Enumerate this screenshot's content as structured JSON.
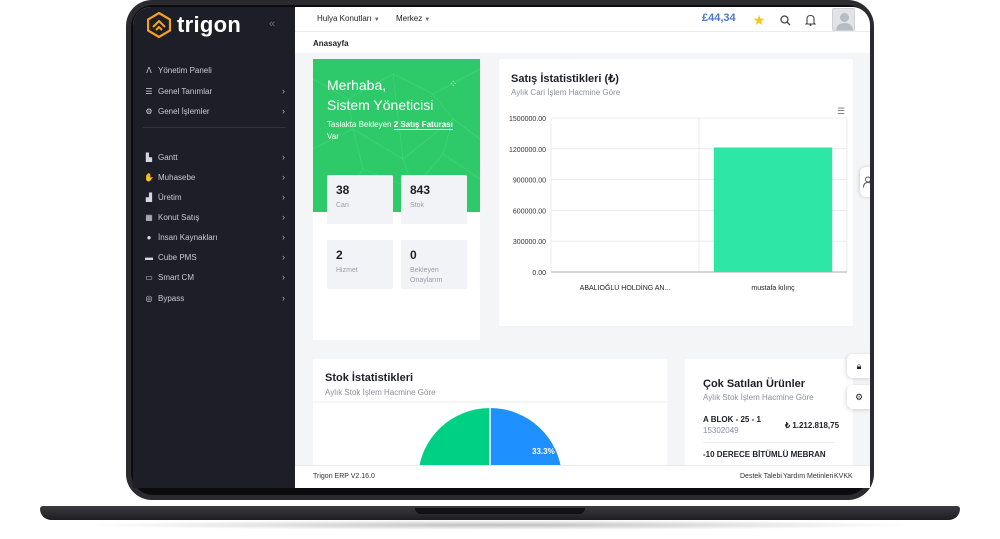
{
  "app": {
    "logo_text": "trigon"
  },
  "sidebar": {
    "items": [
      {
        "label": "Yönetim Paneli",
        "icon": "chart-icon",
        "has_chevron": false
      },
      {
        "label": "Genel Tanımlar",
        "icon": "sliders-icon",
        "has_chevron": true
      },
      {
        "label": "Genel İşlemler",
        "icon": "cogs-icon",
        "has_chevron": true
      },
      {
        "label": "Gantt",
        "icon": "gantt-icon",
        "has_chevron": true
      },
      {
        "label": "Muhasebe",
        "icon": "hand-coins-icon",
        "has_chevron": true
      },
      {
        "label": "Üretim",
        "icon": "factory-icon",
        "has_chevron": true
      },
      {
        "label": "Konut Satış",
        "icon": "building-icon",
        "has_chevron": true
      },
      {
        "label": "İnsan Kaynakları",
        "icon": "user-icon",
        "has_chevron": true
      },
      {
        "label": "Cube PMS",
        "icon": "cube-icon",
        "has_chevron": true
      },
      {
        "label": "Smart CM",
        "icon": "cm-icon",
        "has_chevron": true
      },
      {
        "label": "Bypass",
        "icon": "bypass-icon",
        "has_chevron": true
      }
    ]
  },
  "topbar": {
    "company": "Hulya Konutları",
    "branch": "Merkez",
    "balance": "£44,34"
  },
  "breadcrumb": "Anasayfa",
  "welcome": {
    "greeting_line1": "Merhaba,",
    "greeting_line2": "Sistem Yöneticisi",
    "draft_prefix": "Taslakta Bekleyen ",
    "draft_link": "2 Satış Faturası",
    "draft_suffix": "Var",
    "stats": [
      {
        "value": "38",
        "label": "Cari"
      },
      {
        "value": "843",
        "label": "Stok"
      },
      {
        "value": "2",
        "label": "Hizmet"
      },
      {
        "value": "0",
        "label": "Bekleyen Onaylarım"
      }
    ]
  },
  "sales_stats": {
    "title": "Satış İstatistikleri (₺)",
    "subtitle": "Aylık Cari İşlem Hacmine Göre"
  },
  "stock_stats": {
    "title": "Stok İstatistikleri",
    "subtitle": "Aylık Stok İşlem Hacmine Göre",
    "pie_label": "33.3%"
  },
  "best_sellers": {
    "title": "Çok Satılan Ürünler",
    "subtitle": "Aylık Stok İşlem Hacmine Göre",
    "items": [
      {
        "name": "A BLOK - 25 - 1",
        "code": "15302049",
        "price": "₺ 1.212.818,75"
      },
      {
        "name": "-10 DERECE BİTÜMLÜ MEBRAN",
        "code": "",
        "price": ""
      }
    ]
  },
  "footer": {
    "version": "Trigon ERP V2.16.0",
    "links": [
      "Destek Talebi",
      "Yardım Metinleri",
      "KVKK"
    ]
  },
  "colors": {
    "brand_orange": "#f7a21b",
    "sidebar_bg": "#1d1e28",
    "welcome_green": "#2eca6a",
    "bar_green": "#2ee6a6",
    "pie_green": "#00d084",
    "pie_blue": "#1e90ff",
    "balance_blue": "#4a78c8",
    "star_yellow": "#f5c518"
  },
  "chart_data": {
    "type": "bar",
    "categories": [
      "ABALIOĞLU HOLDİNG AN...",
      "mustafa kılınç"
    ],
    "values": [
      0,
      1212818.75
    ],
    "ylim": [
      0,
      1500000
    ],
    "yticks": [
      "1500000.00",
      "1200000.00",
      "900000.00",
      "600000.00",
      "300000.00",
      "0.00"
    ],
    "grid": true,
    "title": "Satış İstatistikleri (₺)",
    "subtitle": "Aylık Cari İşlem Hacmine Göre"
  }
}
